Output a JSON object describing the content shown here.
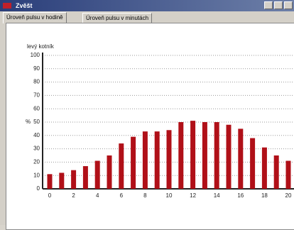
{
  "window": {
    "title": "Zvěšt",
    "tabs": [
      "Úroveň pulsu v hodině",
      "Úroveň pulsu v minutách"
    ]
  },
  "chart_data": {
    "type": "bar",
    "title": "levý kotník",
    "y_label": "%",
    "categories": [
      "0",
      null,
      "2",
      null,
      "4",
      null,
      "6",
      null,
      "8",
      null,
      "10",
      null,
      "12",
      null,
      "14",
      null,
      "16",
      null,
      "18",
      null,
      "20"
    ],
    "values": [
      11,
      12,
      14,
      17,
      21,
      25,
      34,
      39,
      43,
      43,
      44,
      50,
      51,
      50,
      50,
      48,
      45,
      38,
      31,
      25,
      21
    ],
    "color": "#b01018",
    "ylim": [
      0,
      100
    ],
    "yticks": [
      0,
      10,
      20,
      30,
      40,
      50,
      60,
      70,
      80,
      90,
      100
    ],
    "grid": true
  }
}
